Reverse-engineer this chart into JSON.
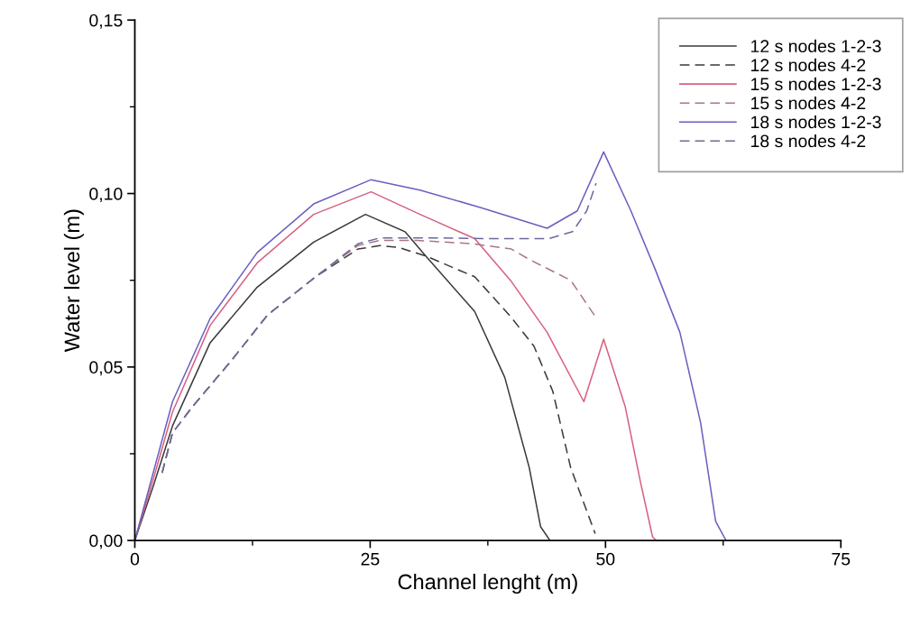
{
  "chart_data": {
    "type": "line",
    "xlabel": "Channel lenght (m)",
    "ylabel": "Water level (m)",
    "xlim": [
      0,
      75
    ],
    "ylim": [
      0,
      0.15
    ],
    "xticks": [
      0,
      25,
      50,
      75
    ],
    "yticks": [
      {
        "value": 0,
        "label": "0,00"
      },
      {
        "value": 0.05,
        "label": "0,05"
      },
      {
        "value": 0.1,
        "label": "0,10"
      },
      {
        "value": 0.15,
        "label": "0,15"
      }
    ],
    "grid": false,
    "legend": "top right",
    "marker": "none",
    "series": [
      {
        "name": "12 s nodes 1-2-3",
        "color": "#3a3a3a",
        "line_style": "solid",
        "x": [
          0,
          2,
          4,
          8,
          13,
          19,
          24.5,
          28.7,
          30.9,
          36.1,
          39.3,
          41.9,
          43.1,
          44.1
        ],
        "values": [
          0,
          0.016,
          0.033,
          0.057,
          0.073,
          0.086,
          0.094,
          0.089,
          0.082,
          0.066,
          0.047,
          0.021,
          0.004,
          0
        ]
      },
      {
        "name": "12 s nodes 4-2",
        "color": "#3a3a3a",
        "line_style": "dashed",
        "x": [
          2.9,
          4,
          6.1,
          10.3,
          14.1,
          19.2,
          23.7,
          26,
          28,
          30.9,
          36.1,
          39.9,
          42.4,
          44.4,
          46.3,
          48.9
        ],
        "values": [
          0.0195,
          0.031,
          0.0385,
          0.052,
          0.065,
          0.076,
          0.084,
          0.085,
          0.0845,
          0.082,
          0.076,
          0.0646,
          0.056,
          0.043,
          0.021,
          0.002
        ]
      },
      {
        "name": "15 s nodes 1-2-3",
        "color": "#d8607f",
        "line_style": "solid",
        "x": [
          0,
          2,
          4,
          8,
          13,
          19,
          25.1,
          30.3,
          36.1,
          39.9,
          43.8,
          47.7,
          49.8,
          52.1,
          53.7,
          55,
          55.4
        ],
        "values": [
          0,
          0.018,
          0.037,
          0.062,
          0.08,
          0.094,
          0.1005,
          0.094,
          0.087,
          0.075,
          0.06,
          0.04,
          0.058,
          0.0385,
          0.017,
          0.001,
          0
        ]
      },
      {
        "name": "15 s nodes 4-2",
        "color": "#a87888",
        "line_style": "dashed",
        "x": [
          2.9,
          4,
          6.1,
          10.3,
          14.1,
          19.2,
          23.7,
          26,
          30,
          36,
          40,
          41.9,
          46.3,
          48.9
        ],
        "values": [
          0.0195,
          0.031,
          0.0385,
          0.052,
          0.065,
          0.076,
          0.085,
          0.0865,
          0.0865,
          0.0855,
          0.084,
          0.081,
          0.075,
          0.0646
        ]
      },
      {
        "name": "18 s nodes 1-2-3",
        "color": "#6a5fc0",
        "line_style": "solid",
        "x": [
          0,
          2,
          4,
          8,
          13,
          19,
          25.1,
          30.3,
          36.7,
          43.8,
          47,
          49.8,
          52.7,
          55.3,
          57.9,
          60.1,
          61.7,
          62.8
        ],
        "values": [
          0,
          0.02,
          0.04,
          0.064,
          0.083,
          0.097,
          0.104,
          0.101,
          0.096,
          0.09,
          0.095,
          0.112,
          0.095,
          0.078,
          0.06,
          0.034,
          0.0055,
          0
        ]
      },
      {
        "name": "18 s nodes 4-2",
        "color": "#6a6a9a",
        "line_style": "dashed",
        "x": [
          2.9,
          4,
          6.1,
          10.3,
          14.1,
          19.2,
          23.7,
          26,
          32,
          38,
          44,
          46.5,
          48,
          49
        ],
        "values": [
          0.0195,
          0.031,
          0.0385,
          0.052,
          0.065,
          0.076,
          0.0855,
          0.0872,
          0.0872,
          0.087,
          0.087,
          0.089,
          0.095,
          0.103
        ]
      }
    ]
  }
}
